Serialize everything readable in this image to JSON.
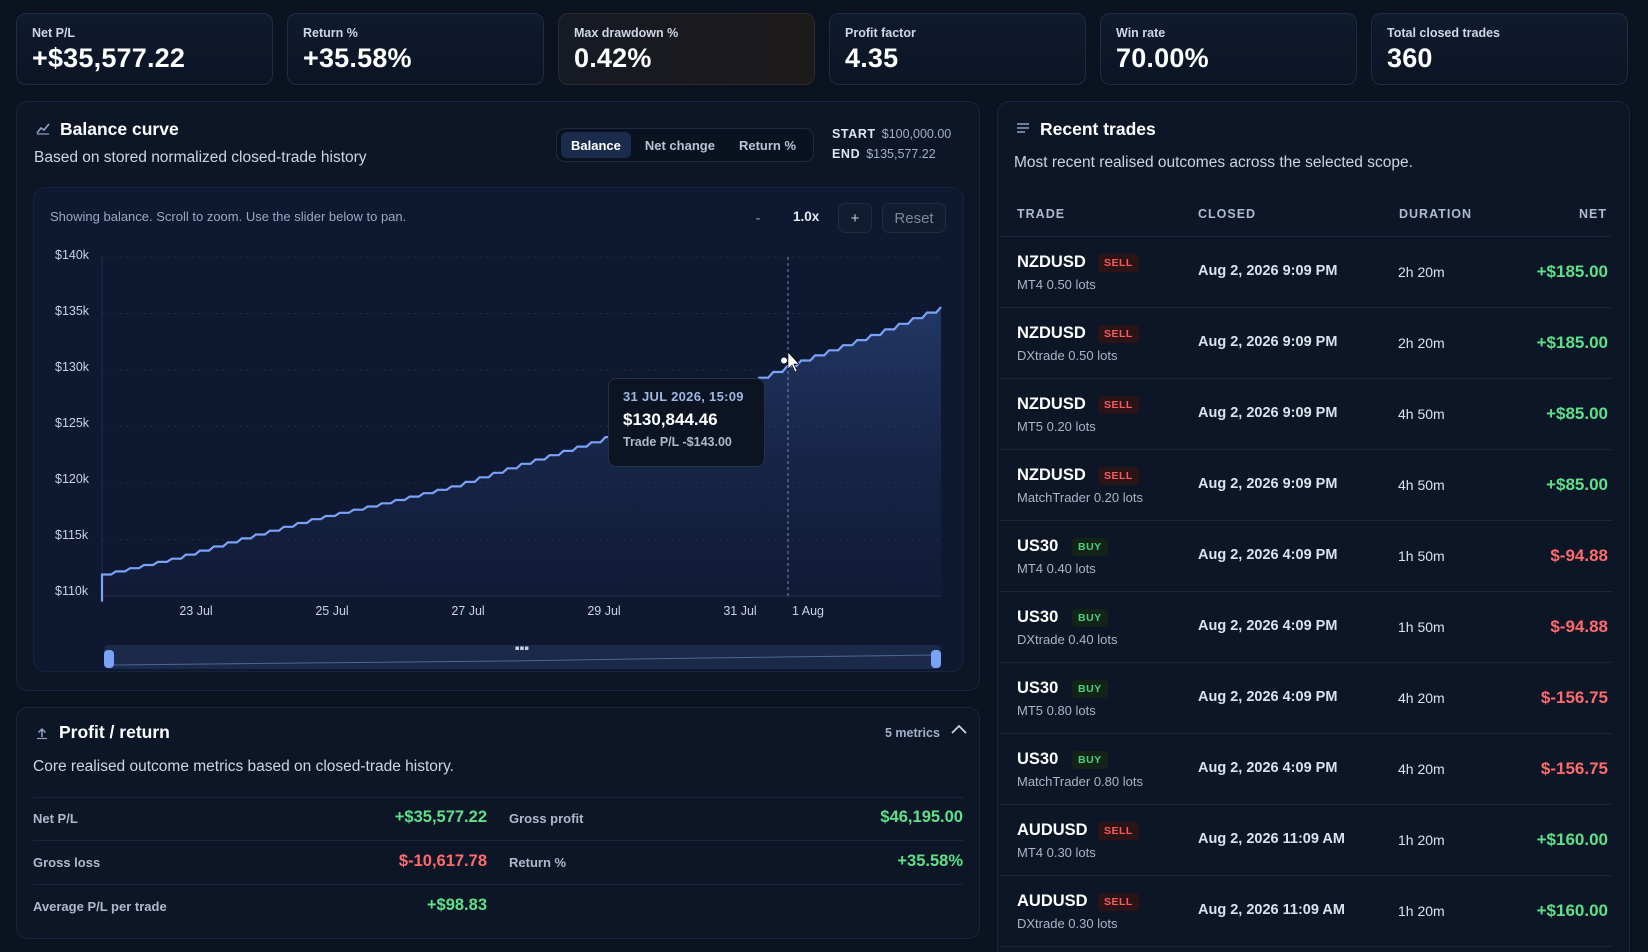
{
  "kpis": [
    {
      "label": "Net P/L",
      "value": "+$35,577.22"
    },
    {
      "label": "Return %",
      "value": "+35.58%"
    },
    {
      "label": "Max drawdown %",
      "value": "0.42%"
    },
    {
      "label": "Profit factor",
      "value": "4.35"
    },
    {
      "label": "Win rate",
      "value": "70.00%"
    },
    {
      "label": "Total closed trades",
      "value": "360"
    }
  ],
  "balance": {
    "title": "Balance curve",
    "subtitle": "Based on stored normalized closed-trade history",
    "modes": [
      "Balance",
      "Net change",
      "Return %"
    ],
    "active_mode": "Balance",
    "start_label": "START",
    "start_value": "$100,000.00",
    "end_label": "END",
    "end_value": "$135,577.22",
    "hint": "Showing balance. Scroll to zoom. Use the slider below to pan.",
    "zoom_out": "-",
    "zoom_level": "1.0x",
    "zoom_in": "+",
    "reset": "Reset",
    "tooltip": {
      "date": "31 JUL 2026, 15:09",
      "value": "$130,844.46",
      "trade_pl": "Trade P/L -$143.00"
    }
  },
  "chart_data": {
    "type": "line",
    "series": [
      {
        "values_note_free": true
      }
    ],
    "x_ticks": [
      "23 Jul",
      "25 Jul",
      "27 Jul",
      "29 Jul",
      "31 Jul",
      "1 Aug"
    ],
    "y_ticks": [
      "$140k",
      "$135k",
      "$130k",
      "$125k",
      "$120k",
      "$115k",
      "$110k"
    ],
    "ylim": [
      110000,
      140000
    ],
    "x": [
      "21 Jul",
      "22 Jul",
      "23 Jul",
      "24 Jul",
      "25 Jul",
      "26 Jul",
      "27 Jul",
      "28 Jul",
      "29 Jul",
      "30 Jul",
      "31 Jul",
      "1 Aug",
      "2 Aug"
    ],
    "values": [
      111900,
      113300,
      115100,
      116800,
      118200,
      119700,
      121700,
      123600,
      125900,
      128300,
      130844,
      133100,
      135577
    ],
    "grid": true
  },
  "profit": {
    "title": "Profit / return",
    "subtitle": "Core realised outcome metrics based on closed-trade history.",
    "count": "5 metrics",
    "metrics": [
      {
        "label": "Net P/L",
        "value": "+$35,577.22"
      },
      {
        "label": "Gross profit",
        "value": "$46,195.00"
      },
      {
        "label": "Gross loss",
        "value": "$-10,617.78"
      },
      {
        "label": "Return %",
        "value": "+35.58%"
      },
      {
        "label": "Average P/L per trade",
        "value": "+$98.83"
      }
    ]
  },
  "trades": {
    "title": "Recent trades",
    "subtitle": "Most recent realised outcomes across the selected scope.",
    "headers": [
      "TRADE",
      "CLOSED",
      "DURATION",
      "NET"
    ],
    "rows": [
      {
        "symbol": "NZDUSD",
        "side": "SELL",
        "platform": "MT4  0.50 lots",
        "closed": "Aug 2, 2026 9:09 PM",
        "duration": "2h 20m",
        "net": "+$185.00"
      },
      {
        "symbol": "NZDUSD",
        "side": "SELL",
        "platform": "DXtrade  0.50 lots",
        "closed": "Aug 2, 2026 9:09 PM",
        "duration": "2h 20m",
        "net": "+$185.00"
      },
      {
        "symbol": "NZDUSD",
        "side": "SELL",
        "platform": "MT5  0.20 lots",
        "closed": "Aug 2, 2026 9:09 PM",
        "duration": "4h 50m",
        "net": "+$85.00"
      },
      {
        "symbol": "NZDUSD",
        "side": "SELL",
        "platform": "MatchTrader  0.20 lots",
        "closed": "Aug 2, 2026 9:09 PM",
        "duration": "4h 50m",
        "net": "+$85.00"
      },
      {
        "symbol": "US30",
        "side": "BUY",
        "platform": "MT4  0.40 lots",
        "closed": "Aug 2, 2026 4:09 PM",
        "duration": "1h 50m",
        "net": "$-94.88"
      },
      {
        "symbol": "US30",
        "side": "BUY",
        "platform": "DXtrade  0.40 lots",
        "closed": "Aug 2, 2026 4:09 PM",
        "duration": "1h 50m",
        "net": "$-94.88"
      },
      {
        "symbol": "US30",
        "side": "BUY",
        "platform": "MT5  0.80 lots",
        "closed": "Aug 2, 2026 4:09 PM",
        "duration": "4h 20m",
        "net": "$-156.75"
      },
      {
        "symbol": "US30",
        "side": "BUY",
        "platform": "MatchTrader  0.80 lots",
        "closed": "Aug 2, 2026 4:09 PM",
        "duration": "4h 20m",
        "net": "$-156.75"
      },
      {
        "symbol": "AUDUSD",
        "side": "SELL",
        "platform": "MT4  0.30 lots",
        "closed": "Aug 2, 2026 11:09 AM",
        "duration": "1h 20m",
        "net": "+$160.00"
      },
      {
        "symbol": "AUDUSD",
        "side": "SELL",
        "platform": "DXtrade  0.30 lots",
        "closed": "Aug 2, 2026 11:09 AM",
        "duration": "1h 20m",
        "net": "+$160.00"
      }
    ]
  },
  "colors": {
    "background": "#0b1220",
    "line": "#7aa2f7",
    "positive": "#5ee08a",
    "negative": "#ff6b6b"
  }
}
